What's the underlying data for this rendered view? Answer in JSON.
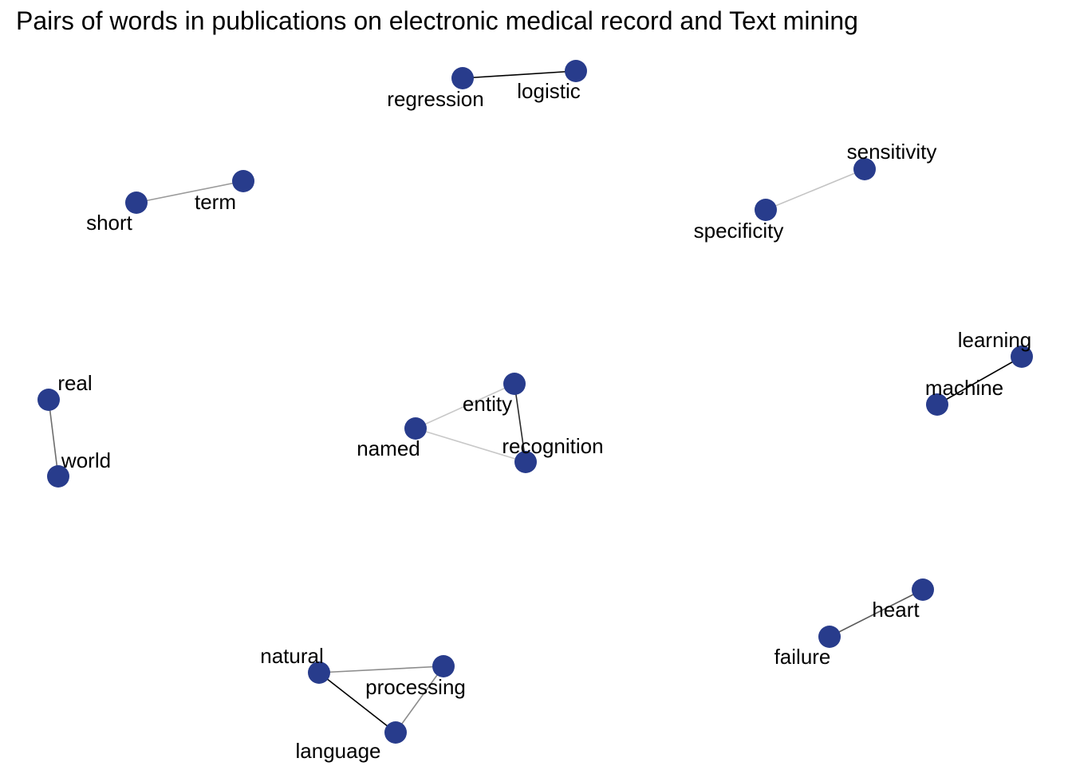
{
  "title": "Pairs of words in publications on electronic medical record and Text mining",
  "node_color": "#283c8c",
  "nodes": [
    {
      "id": "regression",
      "label": "regression"
    },
    {
      "id": "logistic",
      "label": "logistic"
    },
    {
      "id": "short",
      "label": "short"
    },
    {
      "id": "term",
      "label": "term"
    },
    {
      "id": "sensitivity",
      "label": "sensitivity"
    },
    {
      "id": "specificity",
      "label": "specificity"
    },
    {
      "id": "real",
      "label": "real"
    },
    {
      "id": "world",
      "label": "world"
    },
    {
      "id": "named",
      "label": "named"
    },
    {
      "id": "entity",
      "label": "entity"
    },
    {
      "id": "recognition",
      "label": "recognition"
    },
    {
      "id": "learning",
      "label": "learning"
    },
    {
      "id": "machine",
      "label": "machine"
    },
    {
      "id": "heart",
      "label": "heart"
    },
    {
      "id": "failure",
      "label": "failure"
    },
    {
      "id": "natural",
      "label": "natural"
    },
    {
      "id": "processing",
      "label": "processing"
    },
    {
      "id": "language",
      "label": "language"
    }
  ],
  "edges": [
    {
      "from": "regression",
      "to": "logistic",
      "color": "#000000"
    },
    {
      "from": "short",
      "to": "term",
      "color": "#9a9a9a"
    },
    {
      "from": "specificity",
      "to": "sensitivity",
      "color": "#c4c4c4"
    },
    {
      "from": "real",
      "to": "world",
      "color": "#6e6e6e"
    },
    {
      "from": "named",
      "to": "entity",
      "color": "#c8c8c8"
    },
    {
      "from": "named",
      "to": "recognition",
      "color": "#c8c8c8"
    },
    {
      "from": "entity",
      "to": "recognition",
      "color": "#2a2a2a"
    },
    {
      "from": "machine",
      "to": "learning",
      "color": "#000000"
    },
    {
      "from": "failure",
      "to": "heart",
      "color": "#5a5a5a"
    },
    {
      "from": "natural",
      "to": "processing",
      "color": "#8c8c8c"
    },
    {
      "from": "natural",
      "to": "language",
      "color": "#000000"
    },
    {
      "from": "processing",
      "to": "language",
      "color": "#8c8c8c"
    }
  ]
}
